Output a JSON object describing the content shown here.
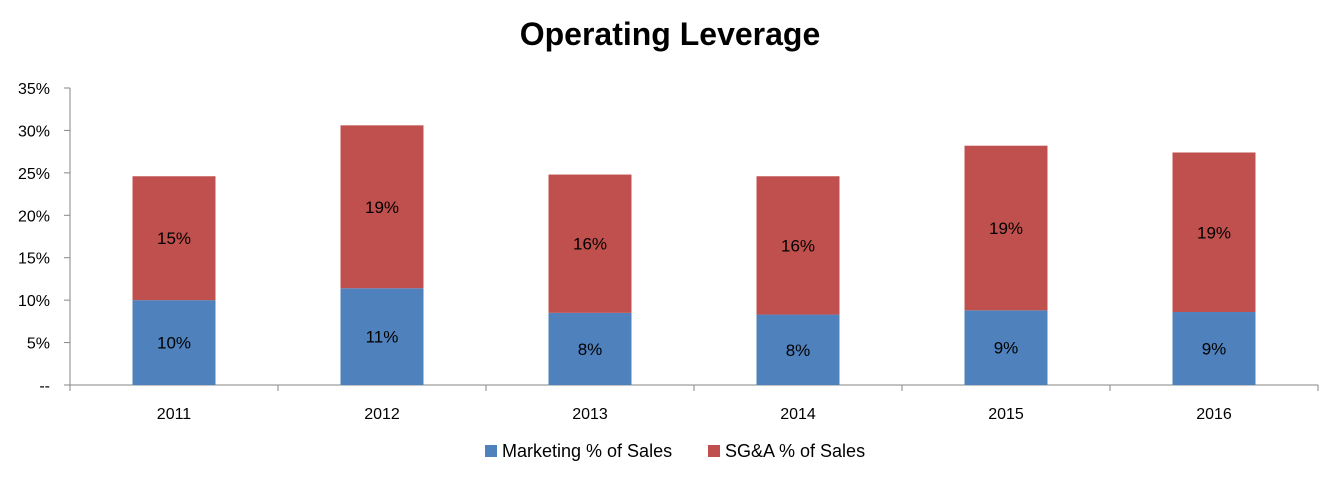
{
  "chart_data": {
    "type": "bar",
    "stacked": true,
    "title": "Operating Leverage",
    "categories": [
      "2011",
      "2012",
      "2013",
      "2014",
      "2015",
      "2016"
    ],
    "series": [
      {
        "name": "Marketing % of Sales",
        "color": "#4F81BD",
        "values": [
          10.0,
          11.4,
          8.5,
          8.3,
          8.8,
          8.6
        ],
        "labels": [
          "10%",
          "11%",
          "8%",
          "8%",
          "9%",
          "9%"
        ]
      },
      {
        "name": "SG&A % of Sales",
        "color": "#C0504D",
        "values": [
          14.6,
          19.2,
          16.3,
          16.3,
          19.4,
          18.8
        ],
        "labels": [
          "15%",
          "19%",
          "16%",
          "16%",
          "19%",
          "19%"
        ]
      }
    ],
    "ylim": [
      0,
      35
    ],
    "yticks": [
      {
        "value": 0,
        "label": "--"
      },
      {
        "value": 5,
        "label": "5%"
      },
      {
        "value": 10,
        "label": "10%"
      },
      {
        "value": 15,
        "label": "15%"
      },
      {
        "value": 20,
        "label": "20%"
      },
      {
        "value": 25,
        "label": "25%"
      },
      {
        "value": 30,
        "label": "30%"
      },
      {
        "value": 35,
        "label": "35%"
      }
    ],
    "grid": false,
    "legend": "bottom"
  }
}
